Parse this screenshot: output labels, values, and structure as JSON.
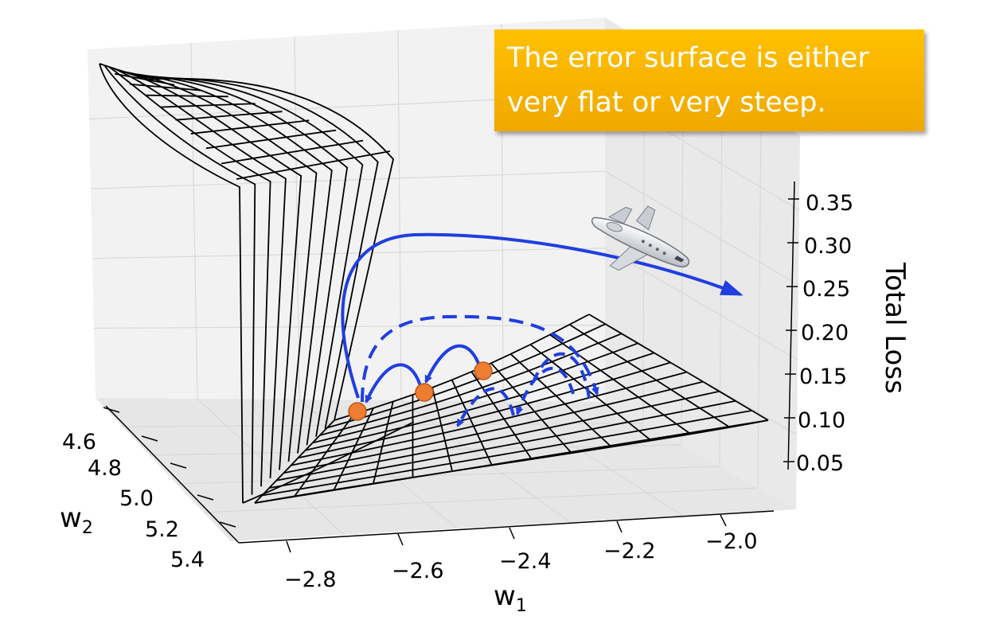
{
  "callout": {
    "text_line1": "The error surface is either",
    "text_line2": "very flat or very steep."
  },
  "chart_data": {
    "type": "surface",
    "xlabel": "w",
    "xlabel_sub": "1",
    "ylabel": "w",
    "ylabel_sub": "2",
    "zlabel": "Total Loss",
    "x_ticks": [
      "−2.8",
      "−2.6",
      "−2.4",
      "−2.2",
      "−2.0"
    ],
    "y_ticks": [
      "4.6",
      "4.8",
      "5.0",
      "5.2",
      "5.4"
    ],
    "z_ticks": [
      "0.35",
      "0.30",
      "0.25",
      "0.20",
      "0.15",
      "0.10",
      "0.05"
    ],
    "xlim": [
      -2.8,
      -2.0
    ],
    "ylim": [
      4.6,
      5.4
    ],
    "zlim": [
      0.05,
      0.35
    ],
    "grid": true,
    "points": 3,
    "colors": {
      "surface": "#000000",
      "path": "#1f3fe0",
      "point": "#ed7d31",
      "callout": "#ffc000"
    },
    "icons": [
      "airplane-icon"
    ]
  }
}
